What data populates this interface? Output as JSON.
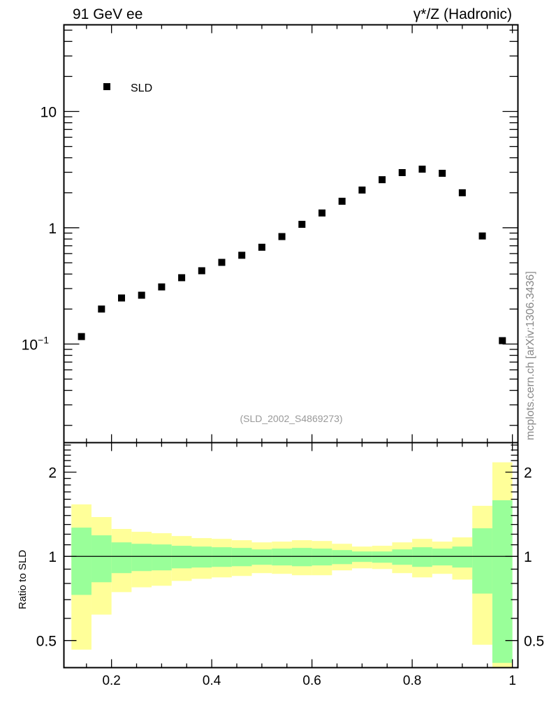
{
  "chart_data": [
    {
      "type": "scatter",
      "title_left": "91 GeV ee",
      "title_right": "γ*/Z (Hadronic)",
      "legend": [
        {
          "label": "SLD",
          "marker": "square",
          "color": "#000000"
        }
      ],
      "legend_placement": "top-left",
      "watermark": "(SLD_2002_S4869273)",
      "side_label": "mcplots.cern.ch [arXiv:1306.3436]",
      "yscale": "log",
      "ylim": [
        0.0142,
        55.6
      ],
      "xlim": [
        0.105,
        1.011
      ],
      "y_ticks": [
        {
          "value": 10,
          "label": "10"
        },
        {
          "value": 1,
          "label": "1"
        },
        {
          "value": 0.1,
          "label": "10",
          "sup": "−1"
        }
      ],
      "x": [
        0.14,
        0.18,
        0.22,
        0.26,
        0.3,
        0.34,
        0.38,
        0.42,
        0.46,
        0.5,
        0.54,
        0.58,
        0.62,
        0.66,
        0.7,
        0.74,
        0.78,
        0.82,
        0.86,
        0.9,
        0.94,
        0.98
      ],
      "series": [
        {
          "name": "SLD",
          "values": [
            0.116,
            0.2,
            0.249,
            0.263,
            0.31,
            0.372,
            0.427,
            0.504,
            0.58,
            0.68,
            0.84,
            1.07,
            1.34,
            1.69,
            2.11,
            2.59,
            2.98,
            3.19,
            2.94,
            2.0,
            0.85,
            0.107
          ]
        }
      ]
    },
    {
      "type": "area",
      "ylabel": "Ratio to SLD",
      "yscale": "log",
      "ylim": [
        0.4,
        2.55
      ],
      "xlim": [
        0.105,
        1.011
      ],
      "y_ticks": [
        {
          "value": 2,
          "label": "2"
        },
        {
          "value": 1,
          "label": "1"
        },
        {
          "value": 0.5,
          "label": "0.5"
        }
      ],
      "x_ticks": [
        {
          "value": 0.2,
          "label": "0.2"
        },
        {
          "value": 0.4,
          "label": "0.4"
        },
        {
          "value": 0.6,
          "label": "0.6"
        },
        {
          "value": 0.8,
          "label": "0.8"
        },
        {
          "value": 1,
          "label": "1"
        }
      ],
      "bin_edges": [
        0.12,
        0.16,
        0.2,
        0.24,
        0.28,
        0.32,
        0.36,
        0.4,
        0.44,
        0.48,
        0.52,
        0.56,
        0.6,
        0.64,
        0.68,
        0.72,
        0.76,
        0.8,
        0.84,
        0.88,
        0.92,
        0.96,
        1.0
      ],
      "bands": [
        {
          "name": "outer uncertainty",
          "color": "#ffff99",
          "upper": [
            1.534,
            1.382,
            1.253,
            1.224,
            1.21,
            1.182,
            1.162,
            1.155,
            1.142,
            1.122,
            1.129,
            1.142,
            1.135,
            1.109,
            1.084,
            1.091,
            1.122,
            1.155,
            1.129,
            1.169,
            1.516,
            2.169
          ],
          "lower": [
            0.464,
            0.619,
            0.745,
            0.775,
            0.785,
            0.817,
            0.831,
            0.841,
            0.851,
            0.871,
            0.866,
            0.856,
            0.856,
            0.891,
            0.906,
            0.901,
            0.871,
            0.841,
            0.866,
            0.826,
            0.483,
            0.35
          ]
        },
        {
          "name": "inner uncertainty",
          "color": "#99ff99",
          "upper": [
            1.267,
            1.189,
            1.122,
            1.109,
            1.103,
            1.091,
            1.084,
            1.078,
            1.072,
            1.059,
            1.066,
            1.072,
            1.066,
            1.053,
            1.041,
            1.041,
            1.059,
            1.078,
            1.066,
            1.084,
            1.26,
            1.587
          ],
          "lower": [
            0.728,
            0.808,
            0.871,
            0.886,
            0.891,
            0.906,
            0.912,
            0.917,
            0.922,
            0.933,
            0.928,
            0.922,
            0.928,
            0.938,
            0.955,
            0.949,
            0.933,
            0.917,
            0.928,
            0.912,
            0.736,
            0.416
          ]
        }
      ],
      "reference_line": 1
    }
  ]
}
